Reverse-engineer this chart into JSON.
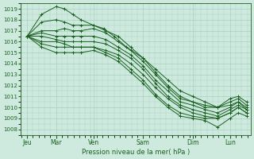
{
  "title": "",
  "xlabel": "Pression niveau de la mer( hPa )",
  "ylabel": "",
  "background_color": "#ceeade",
  "grid_color": "#a8cfc0",
  "line_color": "#1a6020",
  "ylim": [
    1007.5,
    1019.5
  ],
  "yticks": [
    1008,
    1009,
    1010,
    1011,
    1012,
    1013,
    1014,
    1015,
    1016,
    1017,
    1018,
    1019
  ],
  "x_day_labels": [
    "Jeu",
    "Mar",
    "Ven",
    "Sam",
    "Dim",
    "Lun"
  ],
  "x_day_positions": [
    0.0,
    0.7,
    1.6,
    2.8,
    4.0,
    4.9
  ],
  "xlim": [
    -0.15,
    5.4
  ],
  "series": [
    {
      "x": [
        0.0,
        0.35,
        0.7,
        0.9,
        1.1,
        1.3,
        1.6,
        1.85,
        2.1,
        2.4,
        2.8,
        3.1,
        3.4,
        3.7,
        4.0,
        4.3,
        4.6,
        4.9,
        5.1,
        5.3
      ],
      "y": [
        1016.5,
        1018.5,
        1019.2,
        1019.0,
        1018.5,
        1018.0,
        1017.5,
        1017.2,
        1016.5,
        1015.5,
        1014.5,
        1013.5,
        1012.5,
        1011.5,
        1011.0,
        1010.5,
        1010.0,
        1010.2,
        1010.5,
        1009.8
      ]
    },
    {
      "x": [
        0.0,
        0.35,
        0.7,
        0.9,
        1.1,
        1.3,
        1.6,
        1.9,
        2.2,
        2.5,
        2.8,
        3.1,
        3.4,
        3.7,
        4.0,
        4.3,
        4.6,
        4.9,
        5.1,
        5.3
      ],
      "y": [
        1016.5,
        1017.8,
        1018.0,
        1017.8,
        1017.5,
        1017.5,
        1017.5,
        1017.0,
        1016.5,
        1015.5,
        1014.5,
        1013.2,
        1012.0,
        1011.0,
        1010.5,
        1010.2,
        1010.0,
        1010.5,
        1010.8,
        1010.2
      ]
    },
    {
      "x": [
        0.0,
        0.35,
        0.7,
        0.9,
        1.1,
        1.3,
        1.6,
        1.9,
        2.2,
        2.5,
        2.8,
        3.1,
        3.4,
        3.7,
        4.0,
        4.3,
        4.6,
        4.9,
        5.1,
        5.3
      ],
      "y": [
        1016.5,
        1017.0,
        1017.0,
        1017.2,
        1017.0,
        1017.0,
        1017.2,
        1016.8,
        1016.0,
        1015.2,
        1014.2,
        1013.0,
        1011.8,
        1010.8,
        1010.5,
        1010.0,
        1010.0,
        1010.8,
        1011.0,
        1010.5
      ]
    },
    {
      "x": [
        0.0,
        0.35,
        0.7,
        0.9,
        1.1,
        1.3,
        1.6,
        1.9,
        2.2,
        2.5,
        2.8,
        3.1,
        3.4,
        3.7,
        4.0,
        4.3,
        4.6,
        4.9,
        5.1,
        5.3
      ],
      "y": [
        1016.5,
        1016.8,
        1016.5,
        1016.5,
        1016.5,
        1016.5,
        1016.5,
        1016.2,
        1015.5,
        1014.8,
        1013.8,
        1012.5,
        1011.5,
        1010.5,
        1010.2,
        1009.8,
        1009.5,
        1010.0,
        1010.5,
        1010.0
      ]
    },
    {
      "x": [
        0.0,
        0.35,
        0.7,
        0.9,
        1.1,
        1.3,
        1.6,
        1.9,
        2.2,
        2.5,
        2.8,
        3.1,
        3.4,
        3.7,
        4.0,
        4.3,
        4.6,
        4.9,
        5.1,
        5.3
      ],
      "y": [
        1016.5,
        1016.5,
        1016.2,
        1016.0,
        1016.0,
        1016.0,
        1016.0,
        1015.8,
        1015.2,
        1014.5,
        1013.5,
        1012.2,
        1011.0,
        1010.2,
        1009.8,
        1009.5,
        1009.2,
        1009.8,
        1010.2,
        1009.8
      ]
    },
    {
      "x": [
        0.0,
        0.35,
        0.7,
        0.9,
        1.1,
        1.3,
        1.6,
        1.9,
        2.2,
        2.5,
        2.8,
        3.1,
        3.4,
        3.7,
        4.0,
        4.3,
        4.6,
        4.9,
        5.1,
        5.3
      ],
      "y": [
        1016.5,
        1016.0,
        1016.0,
        1015.8,
        1015.5,
        1015.5,
        1015.5,
        1015.2,
        1014.8,
        1014.0,
        1013.0,
        1011.8,
        1010.8,
        1010.0,
        1009.5,
        1009.2,
        1009.0,
        1009.5,
        1010.0,
        1009.5
      ]
    },
    {
      "x": [
        0.0,
        0.35,
        0.7,
        0.9,
        1.1,
        1.3,
        1.6,
        1.9,
        2.2,
        2.5,
        2.8,
        3.1,
        3.4,
        3.7,
        4.0,
        4.3,
        4.6,
        4.9,
        5.1,
        5.3
      ],
      "y": [
        1016.5,
        1015.8,
        1015.5,
        1015.5,
        1015.5,
        1015.5,
        1015.5,
        1015.0,
        1014.5,
        1013.5,
        1012.5,
        1011.2,
        1010.2,
        1009.5,
        1009.2,
        1009.0,
        1009.0,
        1009.5,
        1010.0,
        1009.5
      ]
    },
    {
      "x": [
        0.0,
        0.35,
        0.7,
        0.9,
        1.1,
        1.3,
        1.6,
        1.9,
        2.2,
        2.5,
        2.8,
        3.1,
        3.4,
        3.7,
        4.0,
        4.3,
        4.6,
        4.9,
        5.1,
        5.3
      ],
      "y": [
        1016.5,
        1015.5,
        1015.0,
        1015.0,
        1015.0,
        1015.0,
        1015.2,
        1014.8,
        1014.2,
        1013.2,
        1012.2,
        1011.0,
        1010.0,
        1009.2,
        1009.0,
        1008.8,
        1008.2,
        1009.0,
        1009.5,
        1009.2
      ]
    }
  ]
}
